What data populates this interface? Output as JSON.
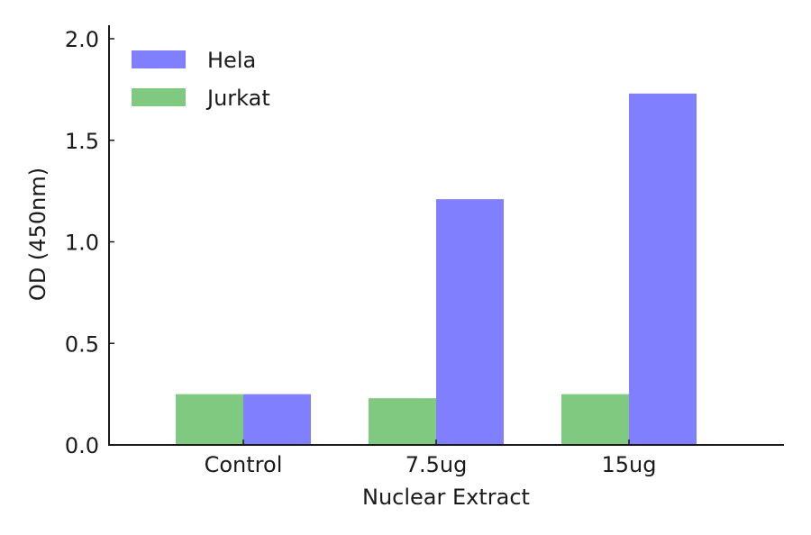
{
  "chart_data": {
    "type": "bar",
    "title": "",
    "xlabel": "Nuclear Extract",
    "ylabel": "OD (450nm)",
    "categories": [
      "Control",
      "7.5ug",
      "15ug"
    ],
    "series": [
      {
        "name": "Jurkat",
        "color": "#80c980",
        "values": [
          0.25,
          0.23,
          0.25
        ]
      },
      {
        "name": "Hela",
        "color": "#8080ff",
        "values": [
          0.25,
          1.21,
          1.73
        ]
      }
    ],
    "ylim": [
      0,
      2.0
    ],
    "yticks": [
      "0.0",
      "0.5",
      "1.0",
      "1.5",
      "2.0"
    ],
    "grid": false,
    "legend_position": "upper left",
    "legend": [
      {
        "name": "Hela",
        "color": "#8080ff"
      },
      {
        "name": "Jurkat",
        "color": "#80c980"
      }
    ]
  }
}
